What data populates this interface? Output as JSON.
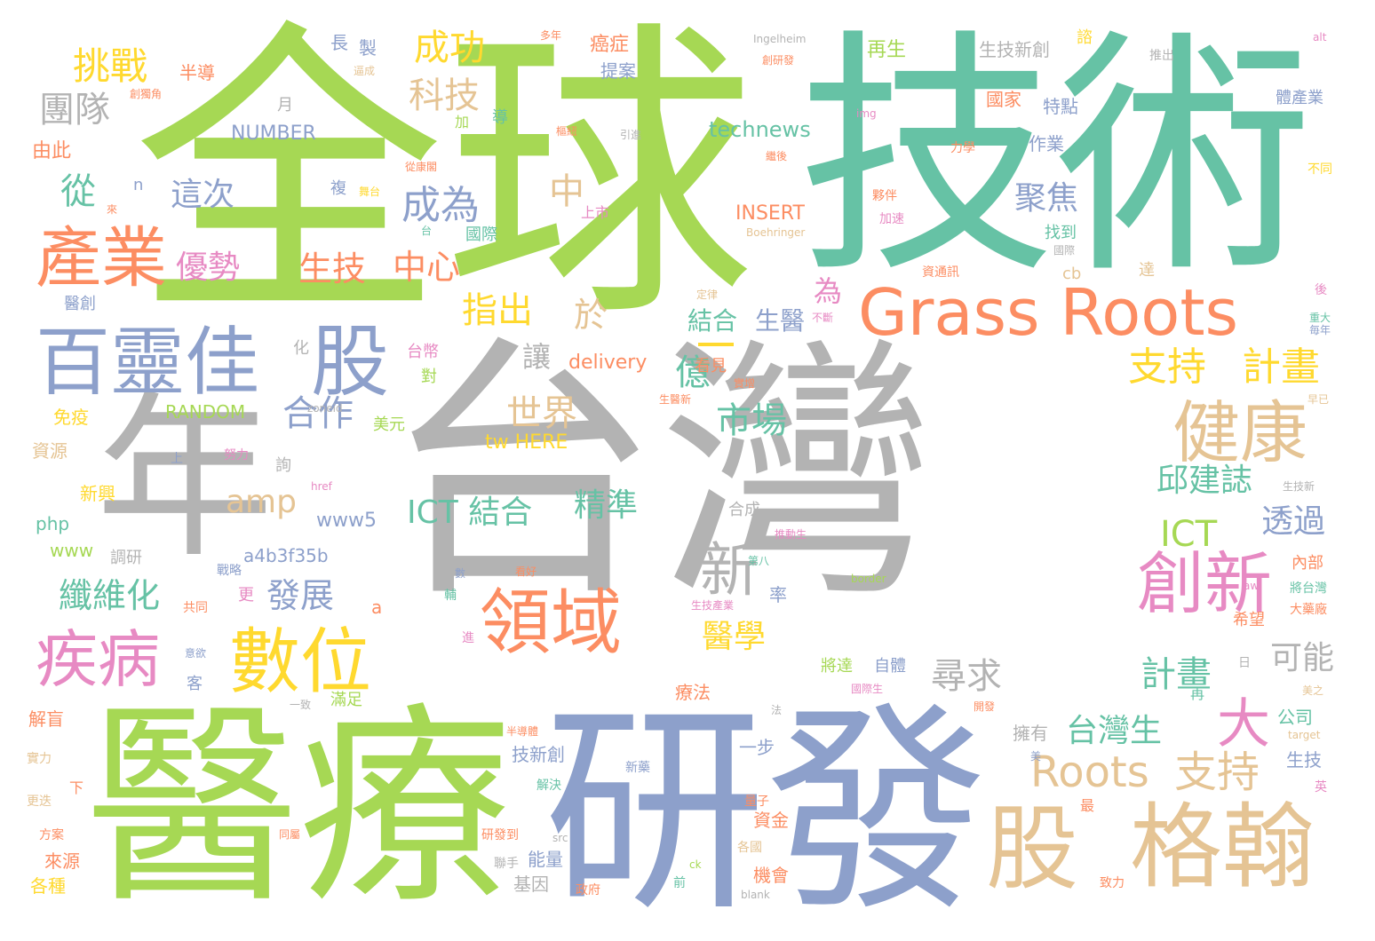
{
  "palette": {
    "gray": "#b3b3b3",
    "green": "#a6d854",
    "teal": "#66c2a5",
    "orange": "#fc8d62",
    "blue": "#8da0cb",
    "pink": "#e78ac3",
    "tan": "#e5c494",
    "yellow": "#ffd92f"
  },
  "words": [
    {
      "text": "台灣",
      "color": "gray"
    },
    {
      "text": "全球",
      "color": "green"
    },
    {
      "text": "技術",
      "color": "teal"
    },
    {
      "text": "醫療",
      "color": "green"
    },
    {
      "text": "研發",
      "color": "blue"
    },
    {
      "text": "年",
      "color": "gray"
    },
    {
      "text": "Grass Roots",
      "color": "orange"
    },
    {
      "text": "百靈佳",
      "color": "blue"
    },
    {
      "text": "股",
      "color": "blue"
    },
    {
      "text": "產業",
      "color": "orange"
    },
    {
      "text": "股",
      "color": "tan"
    },
    {
      "text": "格翰",
      "color": "tan"
    },
    {
      "text": "健康",
      "color": "tan"
    },
    {
      "text": "數位",
      "color": "yellow"
    },
    {
      "text": "領域",
      "color": "orange"
    },
    {
      "text": "創新",
      "color": "pink"
    },
    {
      "text": "疾病",
      "color": "pink"
    },
    {
      "text": "新",
      "color": "gray"
    },
    {
      "text": "大",
      "color": "pink"
    },
    {
      "text": "Roots",
      "color": "tan"
    },
    {
      "text": "支持",
      "color": "tan"
    },
    {
      "text": "挑戰",
      "color": "yellow"
    },
    {
      "text": "成功",
      "color": "yellow"
    },
    {
      "text": "團隊",
      "color": "gray"
    },
    {
      "text": "科技",
      "color": "tan"
    },
    {
      "text": "成為",
      "color": "blue"
    },
    {
      "text": "從",
      "color": "teal"
    },
    {
      "text": "這次",
      "color": "blue"
    },
    {
      "text": "中",
      "color": "tan"
    },
    {
      "text": "優勢",
      "color": "pink"
    },
    {
      "text": "生技",
      "color": "orange"
    },
    {
      "text": "中心",
      "color": "orange"
    },
    {
      "text": "指出",
      "color": "yellow"
    },
    {
      "text": "於",
      "color": "tan"
    },
    {
      "text": "支持",
      "color": "yellow"
    },
    {
      "text": "計畫",
      "color": "yellow"
    },
    {
      "text": "聚焦",
      "color": "blue"
    },
    {
      "text": "市場",
      "color": "teal"
    },
    {
      "text": "合作",
      "color": "blue"
    },
    {
      "text": "世界",
      "color": "tan"
    },
    {
      "text": "億",
      "color": "teal"
    },
    {
      "text": "讓",
      "color": "gray"
    },
    {
      "text": "amp",
      "color": "tan"
    },
    {
      "text": "精準",
      "color": "teal"
    },
    {
      "text": "邱建誌",
      "color": "teal"
    },
    {
      "text": "透過",
      "color": "blue"
    },
    {
      "text": "ICT",
      "color": "green"
    },
    {
      "text": "ICT 結合",
      "color": "teal"
    },
    {
      "text": "纖維化",
      "color": "teal"
    },
    {
      "text": "發展",
      "color": "blue"
    },
    {
      "text": "醫學",
      "color": "yellow"
    },
    {
      "text": "尋求",
      "color": "gray"
    },
    {
      "text": "計畫",
      "color": "teal"
    },
    {
      "text": "可能",
      "color": "gray"
    },
    {
      "text": "台灣生",
      "color": "teal"
    },
    {
      "text": "結合",
      "color": "teal"
    },
    {
      "text": "生醫",
      "color": "blue"
    },
    {
      "text": "為",
      "color": "pink"
    },
    {
      "text": "technews",
      "color": "teal"
    },
    {
      "text": "NUMBER",
      "color": "blue"
    },
    {
      "text": "INSERT",
      "color": "orange"
    },
    {
      "text": "RANDOM",
      "color": "green"
    },
    {
      "text": "delivery",
      "color": "orange"
    },
    {
      "text": "tw HERE",
      "color": "yellow"
    },
    {
      "text": "www5",
      "color": "blue"
    },
    {
      "text": "a4b3f35b",
      "color": "blue"
    },
    {
      "text": "php",
      "color": "teal"
    },
    {
      "text": "www",
      "color": "green"
    },
    {
      "text": "上市",
      "color": "pink"
    },
    {
      "text": "國家",
      "color": "orange"
    },
    {
      "text": "特點",
      "color": "blue"
    },
    {
      "text": "作業",
      "color": "blue"
    },
    {
      "text": "生技新創",
      "color": "gray"
    },
    {
      "text": "再生",
      "color": "green"
    },
    {
      "text": "提案",
      "color": "blue"
    },
    {
      "text": "癌症",
      "color": "orange"
    },
    {
      "text": "製",
      "color": "blue"
    },
    {
      "text": "長",
      "color": "blue"
    },
    {
      "text": "半導",
      "color": "orange"
    },
    {
      "text": "由此",
      "color": "orange"
    },
    {
      "text": "資源",
      "color": "tan"
    },
    {
      "text": "免疫",
      "color": "yellow"
    },
    {
      "text": "新興",
      "color": "yellow"
    },
    {
      "text": "解盲",
      "color": "orange"
    },
    {
      "text": "各種",
      "color": "yellow"
    },
    {
      "text": "來源",
      "color": "orange"
    },
    {
      "text": "能量",
      "color": "blue"
    },
    {
      "text": "基因",
      "color": "gray"
    },
    {
      "text": "技新創",
      "color": "blue"
    },
    {
      "text": "一步",
      "color": "blue"
    },
    {
      "text": "資金",
      "color": "orange"
    },
    {
      "text": "機會",
      "color": "orange"
    },
    {
      "text": "擁有",
      "color": "gray"
    },
    {
      "text": "公司",
      "color": "teal"
    },
    {
      "text": "生技",
      "color": "blue"
    },
    {
      "text": "療法",
      "color": "orange"
    },
    {
      "text": "將達",
      "color": "green"
    },
    {
      "text": "自體",
      "color": "blue"
    },
    {
      "text": "滿足",
      "color": "green"
    },
    {
      "text": "希望",
      "color": "orange"
    },
    {
      "text": "率",
      "color": "blue"
    },
    {
      "text": "內部",
      "color": "orange"
    },
    {
      "text": "看見",
      "color": "orange"
    },
    {
      "text": "美元",
      "color": "green"
    },
    {
      "text": "台幣",
      "color": "pink"
    },
    {
      "text": "對",
      "color": "green"
    },
    {
      "text": "化",
      "color": "gray"
    },
    {
      "text": "醫創",
      "color": "blue"
    },
    {
      "text": "找到",
      "color": "teal"
    },
    {
      "text": "達",
      "color": "tan"
    },
    {
      "text": "cb",
      "color": "tan"
    },
    {
      "text": "國際",
      "color": "teal"
    },
    {
      "text": "複",
      "color": "blue"
    },
    {
      "text": "導",
      "color": "teal"
    },
    {
      "text": "加",
      "color": "green"
    },
    {
      "text": "月",
      "color": "gray"
    },
    {
      "text": "n",
      "color": "blue"
    },
    {
      "text": "a",
      "color": "orange"
    },
    {
      "text": "更",
      "color": "pink"
    },
    {
      "text": "客",
      "color": "blue"
    },
    {
      "text": "調研",
      "color": "gray"
    },
    {
      "text": "共同",
      "color": "orange"
    },
    {
      "text": "戰略",
      "color": "blue"
    },
    {
      "text": "上",
      "color": "blue"
    },
    {
      "text": "努力",
      "color": "pink"
    },
    {
      "text": "詢",
      "color": "gray"
    },
    {
      "text": "合成",
      "color": "gray"
    },
    {
      "text": "實力",
      "color": "tan"
    },
    {
      "text": "方案",
      "color": "orange"
    },
    {
      "text": "更迭",
      "color": "tan"
    },
    {
      "text": "下",
      "color": "orange"
    },
    {
      "text": "一致",
      "color": "gray"
    },
    {
      "text": "解決",
      "color": "teal"
    },
    {
      "text": "新藥",
      "color": "blue"
    },
    {
      "text": "政府",
      "color": "orange"
    },
    {
      "text": "研發到",
      "color": "orange"
    },
    {
      "text": "前",
      "color": "teal"
    },
    {
      "text": "量子",
      "color": "orange"
    },
    {
      "text": "各國",
      "color": "tan"
    },
    {
      "text": "聯手",
      "color": "gray"
    },
    {
      "text": "最",
      "color": "orange"
    },
    {
      "text": "致力",
      "color": "orange"
    },
    {
      "text": "再",
      "color": "teal"
    },
    {
      "text": "開發",
      "color": "orange"
    },
    {
      "text": "美之",
      "color": "tan"
    },
    {
      "text": "英",
      "color": "pink"
    },
    {
      "text": "將台灣",
      "color": "teal"
    },
    {
      "text": "大藥廠",
      "color": "orange"
    },
    {
      "text": "日",
      "color": "gray"
    },
    {
      "text": "美",
      "color": "blue"
    },
    {
      "text": "生技新",
      "color": "gray"
    },
    {
      "text": "早已",
      "color": "tan"
    },
    {
      "text": "重大",
      "color": "teal"
    },
    {
      "text": "毎年",
      "color": "blue"
    },
    {
      "text": "後",
      "color": "pink"
    },
    {
      "text": "不同",
      "color": "yellow"
    },
    {
      "text": "體產業",
      "color": "blue"
    },
    {
      "text": "推出",
      "color": "gray"
    },
    {
      "text": "alt",
      "color": "pink"
    },
    {
      "text": "諮",
      "color": "yellow"
    },
    {
      "text": "Ingelheim",
      "color": "gray"
    },
    {
      "text": "創研發",
      "color": "orange"
    },
    {
      "text": "多年",
      "color": "orange"
    },
    {
      "text": "逼成",
      "color": "tan"
    },
    {
      "text": "創獨角",
      "color": "orange"
    },
    {
      "text": "引進",
      "color": "gray"
    },
    {
      "text": "樞紐",
      "color": "orange"
    },
    {
      "text": "從康閣",
      "color": "orange"
    },
    {
      "text": "繼後",
      "color": "orange"
    },
    {
      "text": "img",
      "color": "pink"
    },
    {
      "text": "力學",
      "color": "orange"
    },
    {
      "text": "舞台",
      "color": "yellow"
    },
    {
      "text": "夥伴",
      "color": "orange"
    },
    {
      "text": "加速",
      "color": "pink"
    },
    {
      "text": "來",
      "color": "orange"
    },
    {
      "text": "台",
      "color": "teal"
    },
    {
      "text": "Boehringer",
      "color": "tan"
    },
    {
      "text": "資通訊",
      "color": "orange"
    },
    {
      "text": "國際",
      "color": "gray"
    },
    {
      "text": "定律",
      "color": "tan"
    },
    {
      "text": "不斷",
      "color": "pink"
    },
    {
      "text": "生醫新",
      "color": "orange"
    },
    {
      "text": "zoneid",
      "color": "gray"
    },
    {
      "text": "href",
      "color": "pink"
    },
    {
      "text": "推動生",
      "color": "pink"
    },
    {
      "text": "第八",
      "color": "teal"
    },
    {
      "text": "border",
      "color": "green"
    },
    {
      "text": "生技產業",
      "color": "pink"
    },
    {
      "text": "意欲",
      "color": "blue"
    },
    {
      "text": "國際生",
      "color": "pink"
    },
    {
      "text": "src",
      "color": "gray"
    },
    {
      "text": "ck",
      "color": "green"
    },
    {
      "text": "blank",
      "color": "gray"
    },
    {
      "text": "法",
      "color": "gray"
    },
    {
      "text": "半導體",
      "color": "orange"
    },
    {
      "text": "同屬",
      "color": "orange"
    },
    {
      "text": "輔",
      "color": "teal"
    },
    {
      "text": "進",
      "color": "pink"
    },
    {
      "text": "看好",
      "color": "orange"
    },
    {
      "text": "數",
      "color": "blue"
    },
    {
      "text": "target",
      "color": "tan"
    },
    {
      "text": "aw",
      "color": "pink"
    },
    {
      "text": "實增",
      "color": "orange"
    }
  ]
}
